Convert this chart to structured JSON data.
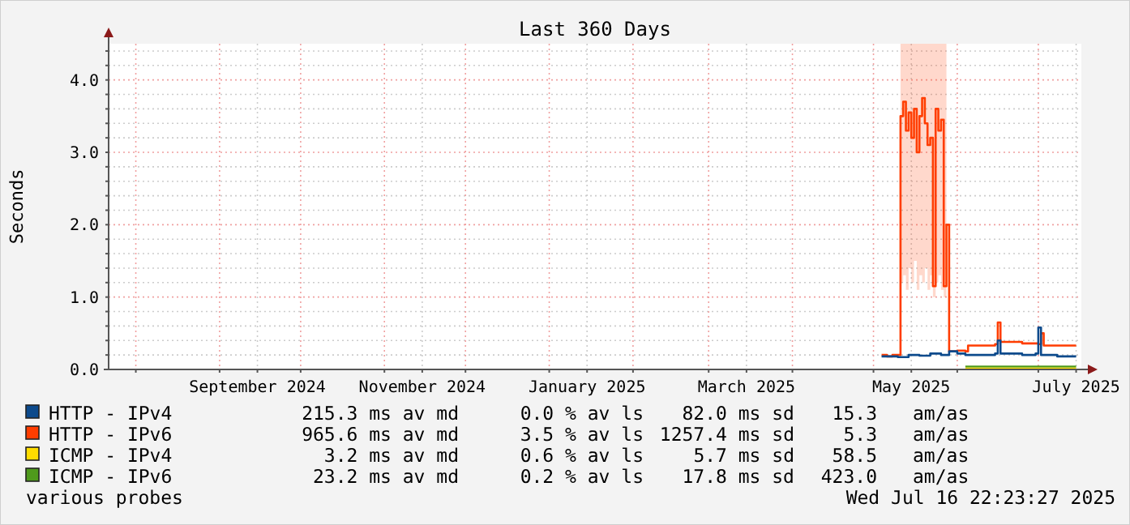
{
  "chart_data": {
    "type": "line",
    "title": "Last 360 Days",
    "ylabel": "Seconds",
    "xlim": [
      "2024-07-21T22:23",
      "2025-07-16T22:23"
    ],
    "xticks": [
      {
        "value": "2024-08-01",
        "label": null
      },
      {
        "value": "2024-09-01",
        "label": null
      },
      {
        "value": "2024-09-15",
        "label": "September 2024"
      },
      {
        "value": "2024-10-01",
        "label": null
      },
      {
        "value": "2024-11-01",
        "label": null
      },
      {
        "value": "2024-11-15",
        "label": "November 2024"
      },
      {
        "value": "2024-12-01",
        "label": null
      },
      {
        "value": "2025-01-01",
        "label": null
      },
      {
        "value": "2025-01-15",
        "label": "January 2025"
      },
      {
        "value": "2025-02-01",
        "label": null
      },
      {
        "value": "2025-03-01",
        "label": null
      },
      {
        "value": "2025-03-15",
        "label": "March 2025"
      },
      {
        "value": "2025-04-01",
        "label": null
      },
      {
        "value": "2025-05-01",
        "label": null
      },
      {
        "value": "2025-05-15",
        "label": "May 2025"
      },
      {
        "value": "2025-06-01",
        "label": null
      },
      {
        "value": "2025-07-01",
        "label": null
      },
      {
        "value": "2025-07-15",
        "label": "July 2025"
      }
    ],
    "ylim": [
      0,
      4.5
    ],
    "yticks": [
      {
        "value": 0,
        "label": "0.0"
      },
      {
        "value": 0.2,
        "label": null
      },
      {
        "value": 0.4,
        "label": null
      },
      {
        "value": 0.6,
        "label": null
      },
      {
        "value": 0.8,
        "label": null
      },
      {
        "value": 1,
        "label": "1.0"
      },
      {
        "value": 1.2,
        "label": null
      },
      {
        "value": 1.4,
        "label": null
      },
      {
        "value": 1.6,
        "label": null
      },
      {
        "value": 1.8,
        "label": null
      },
      {
        "value": 2,
        "label": "2.0"
      },
      {
        "value": 2.2,
        "label": null
      },
      {
        "value": 2.4,
        "label": null
      },
      {
        "value": 2.6,
        "label": null
      },
      {
        "value": 2.8,
        "label": null
      },
      {
        "value": 3,
        "label": "3.0"
      },
      {
        "value": 3.2,
        "label": null
      },
      {
        "value": 3.4,
        "label": null
      },
      {
        "value": 3.6,
        "label": null
      },
      {
        "value": 3.8,
        "label": null
      },
      {
        "value": 4,
        "label": "4.0"
      },
      {
        "value": 4.2,
        "label": null
      },
      {
        "value": 4.4,
        "label": null
      }
    ],
    "grid": true,
    "legend": "bottom",
    "marker": "none",
    "line_style": "solid",
    "series": [
      {
        "name": "HTTP - IPv4",
        "color": "#0c4a8c",
        "x": [
          "2025-05-04",
          "2025-05-10",
          "2025-05-14",
          "2025-05-18",
          "2025-05-22",
          "2025-05-26",
          "2025-05-29",
          "2025-06-01",
          "2025-06-04",
          "2025-06-10",
          "2025-06-15",
          "2025-06-16",
          "2025-06-17",
          "2025-06-25",
          "2025-06-30",
          "2025-07-01",
          "2025-07-02",
          "2025-07-08",
          "2025-07-15"
        ],
        "values": [
          0.18,
          0.17,
          0.2,
          0.19,
          0.22,
          0.2,
          0.25,
          0.22,
          0.2,
          0.2,
          0.22,
          0.4,
          0.22,
          0.2,
          0.22,
          0.58,
          0.2,
          0.18,
          0.18
        ]
      },
      {
        "name": "HTTP - IPv6",
        "color": "#ff3d00",
        "x": [
          "2025-05-04",
          "2025-05-06",
          "2025-05-08",
          "2025-05-10",
          "2025-05-11",
          "2025-05-12",
          "2025-05-13",
          "2025-05-14",
          "2025-05-15",
          "2025-05-16",
          "2025-05-17",
          "2025-05-18",
          "2025-05-19",
          "2025-05-20",
          "2025-05-21",
          "2025-05-22",
          "2025-05-23",
          "2025-05-24",
          "2025-05-25",
          "2025-05-26",
          "2025-05-27",
          "2025-05-28",
          "2025-05-29",
          "2025-06-01",
          "2025-06-04",
          "2025-06-05",
          "2025-06-10",
          "2025-06-15",
          "2025-06-16",
          "2025-06-17",
          "2025-06-25",
          "2025-07-01",
          "2025-07-02",
          "2025-07-03",
          "2025-07-15"
        ],
        "values": [
          0.2,
          0.18,
          0.2,
          0.2,
          3.5,
          3.7,
          3.3,
          3.55,
          3.2,
          3.6,
          3.0,
          3.5,
          3.75,
          3.4,
          3.1,
          3.2,
          1.15,
          3.6,
          3.3,
          3.45,
          1.15,
          2.0,
          0.25,
          0.26,
          0.25,
          0.33,
          0.33,
          0.35,
          0.65,
          0.38,
          0.36,
          0.35,
          0.5,
          0.33,
          0.33
        ],
        "lower": [
          null,
          null,
          null,
          null,
          1.2,
          1.3,
          1.1,
          1.4,
          1.2,
          1.5,
          1.1,
          1.3,
          1.2,
          1.4,
          1.1,
          1.3,
          1.0,
          1.2,
          1.3,
          1.1,
          1.0,
          1.0,
          null,
          null,
          null,
          null,
          null,
          null,
          null,
          null,
          null,
          null,
          null,
          null,
          null
        ],
        "upper": [
          null,
          null,
          null,
          null,
          4.5,
          4.5,
          4.5,
          4.5,
          4.5,
          4.5,
          4.5,
          4.5,
          4.5,
          4.5,
          4.5,
          4.5,
          4.5,
          4.5,
          4.5,
          4.5,
          4.5,
          4.5,
          null,
          null,
          null,
          null,
          null,
          null,
          null,
          null,
          null,
          null,
          null,
          null,
          null
        ]
      },
      {
        "name": "ICMP - IPv4",
        "color": "#ffdd00",
        "x": [
          "2025-06-04",
          "2025-07-15"
        ],
        "values": [
          0.01,
          0.01
        ]
      },
      {
        "name": "ICMP - IPv6",
        "color": "#4f9a1c",
        "x": [
          "2025-06-04",
          "2025-07-15"
        ],
        "values": [
          0.04,
          0.04
        ]
      }
    ],
    "annotations": [
      "215.3 ms av md  0.0 % av ls  82.0 ms sd  15.3  am/as",
      "965.6 ms av md  3.5 % av ls  1257.4 ms sd  5.3  am/as",
      "3.2 ms av md  0.6 % av ls  5.7 ms sd  58.5  am/as",
      "23.2 ms av md  0.2 % av ls  17.8 ms sd  423.0  am/as",
      "various probes",
      "Wed Jul 16 22:23:27 2025"
    ]
  }
}
